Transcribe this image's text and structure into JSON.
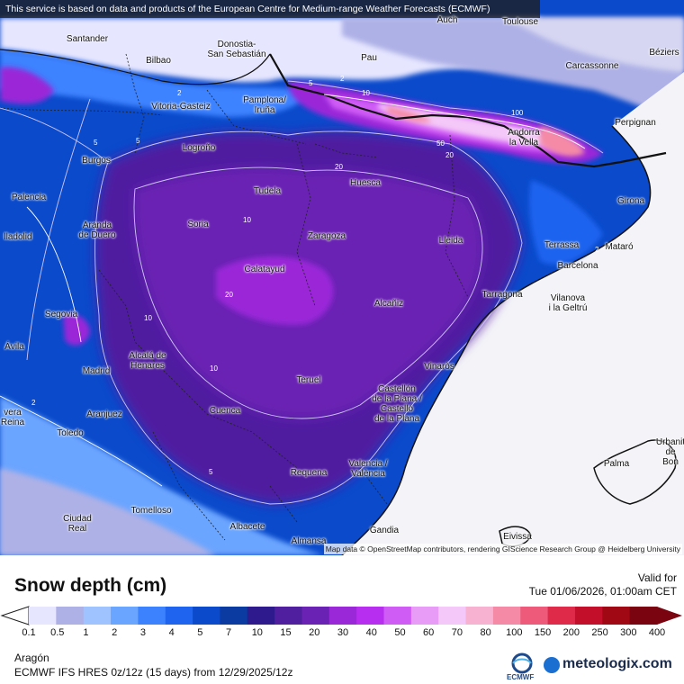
{
  "disclaimer": "This service is based on data and products of the European Centre for Medium-range Weather Forecasts (ECMWF)",
  "attribution": "Map data © OpenStreetMap contributors, rendering GIScience Research Group @ Heidelberg University",
  "places": [
    {
      "name": "Auch"
    },
    {
      "name": "Toulouse"
    },
    {
      "name": "Santander"
    },
    {
      "name": "Donostia-\nSan Sebastián"
    },
    {
      "name": "Bilbao"
    },
    {
      "name": "Pau"
    },
    {
      "name": "Carcassonne"
    },
    {
      "name": "Béziers"
    },
    {
      "name": "Vitoria-Gasteiz"
    },
    {
      "name": "Pamplona/\nIruña"
    },
    {
      "name": "Perpignan"
    },
    {
      "name": "Andorra\nla Vella"
    },
    {
      "name": "Logroño"
    },
    {
      "name": "Burgos"
    },
    {
      "name": "Tudela"
    },
    {
      "name": "Huesca"
    },
    {
      "name": "Palencia"
    },
    {
      "name": "Girona"
    },
    {
      "name": "Aranda\nde Duero"
    },
    {
      "name": "Soria"
    },
    {
      "name": "Zaragoza"
    },
    {
      "name": "Lleida"
    },
    {
      "name": "Terrassa"
    },
    {
      "name": "Mataró"
    },
    {
      "name": "lladolid"
    },
    {
      "name": "Barcelona"
    },
    {
      "name": "Calatayud"
    },
    {
      "name": "Tarragona"
    },
    {
      "name": "Vilanova\ni la Geltrú"
    },
    {
      "name": "Alcañiz"
    },
    {
      "name": "Segovia"
    },
    {
      "name": "Ávila"
    },
    {
      "name": "Alcalá de\nHenares"
    },
    {
      "name": "Vinaròs"
    },
    {
      "name": "Madrid"
    },
    {
      "name": "Teruel"
    },
    {
      "name": "Castellón\nde la Plana /\nCastelló\nde la Plana"
    },
    {
      "name": "vera\nReina"
    },
    {
      "name": "Aranjuez"
    },
    {
      "name": "Cuenca"
    },
    {
      "name": "Toledo"
    },
    {
      "name": "Urbanit\nde\nBon"
    },
    {
      "name": "Valencia /\nValència"
    },
    {
      "name": "Requena"
    },
    {
      "name": "Palma"
    },
    {
      "name": "Ciudad\nReal"
    },
    {
      "name": "Tomelloso"
    },
    {
      "name": "Albacete"
    },
    {
      "name": "Almansa"
    },
    {
      "name": "Gandia"
    },
    {
      "name": "Eivissa"
    }
  ],
  "contour_labels": [
    "2",
    "5",
    "10",
    "20",
    "50",
    "100",
    "2",
    "5",
    "10",
    "20",
    "2",
    "5",
    "10",
    "2",
    "5",
    "10",
    "20"
  ],
  "legend": {
    "title": "Snow depth (cm)",
    "valid_label": "Valid for",
    "valid_time": "Tue 01/06/2026, 01:00am CET",
    "ticks": [
      "0.1",
      "0.5",
      "1",
      "2",
      "3",
      "4",
      "5",
      "7",
      "10",
      "15",
      "20",
      "30",
      "40",
      "50",
      "60",
      "70",
      "80",
      "100",
      "150",
      "200",
      "250",
      "300",
      "400"
    ],
    "colors": [
      "#e6e6ff",
      "#aeb1e6",
      "#9fc3ff",
      "#6aa5ff",
      "#3c82ff",
      "#1e64ef",
      "#0a4acb",
      "#0b3aa0",
      "#2e1a8c",
      "#4f1fa0",
      "#6a22b4",
      "#9a28d8",
      "#b82ef0",
      "#d05cf6",
      "#e89cf8",
      "#f4c8f8",
      "#f7b2d2",
      "#f48aa6",
      "#ee5a7a",
      "#e02a4a",
      "#c40f2a",
      "#a00814",
      "#7a0510"
    ],
    "region": "Aragón",
    "model_line": "ECMWF IFS HRES 0z/12z (15 days) from 12/29/2025/12z",
    "ecmwf_label": "ECMWF",
    "brand": "meteologix.com"
  }
}
